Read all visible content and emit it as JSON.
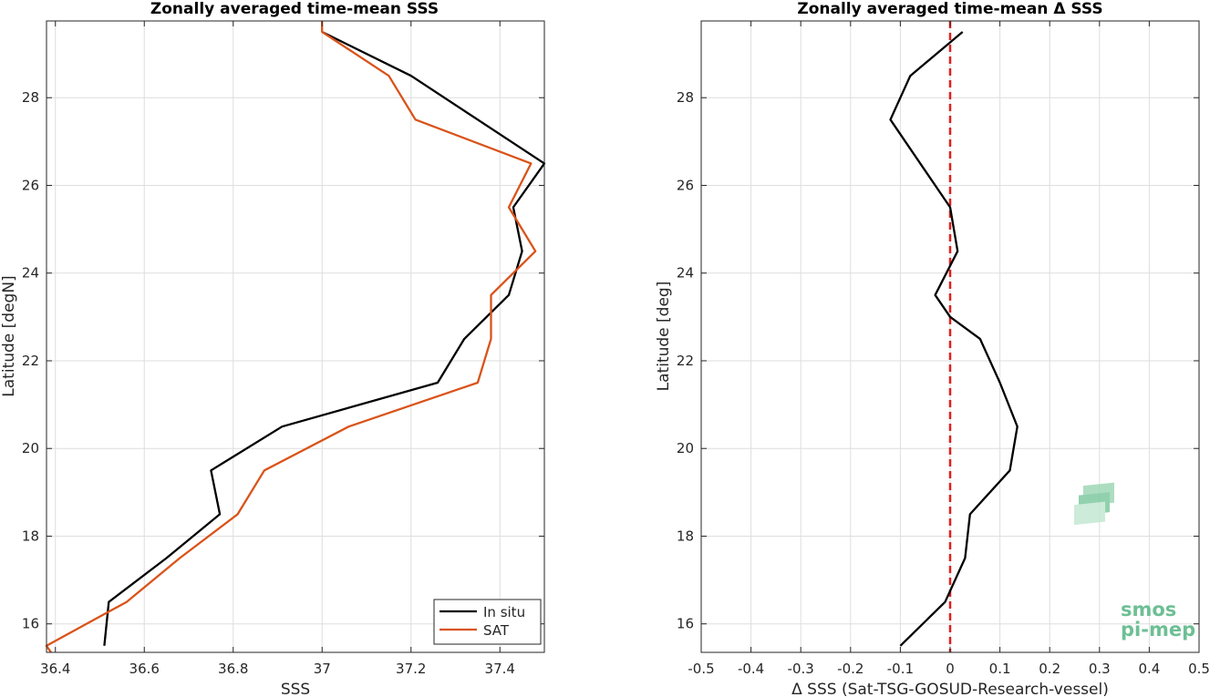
{
  "chart_data": [
    {
      "type": "line",
      "title": "Zonally averaged time-mean SSS",
      "xlabel": "SSS",
      "ylabel": "Latitude [degN]",
      "xlim": [
        36.38,
        37.5
      ],
      "ylim": [
        15.35,
        29.75
      ],
      "xticks": [
        36.4,
        36.6,
        36.8,
        37.0,
        37.2,
        37.4
      ],
      "xtick_labels": [
        "36.4",
        "36.6",
        "36.8",
        "37",
        "37.2",
        "37.4"
      ],
      "yticks": [
        16,
        18,
        20,
        22,
        24,
        26,
        28
      ],
      "ytick_labels": [
        "16",
        "18",
        "20",
        "22",
        "24",
        "26",
        "28"
      ],
      "grid": true,
      "legend_position": "bottom-right",
      "series": [
        {
          "name": "In situ",
          "color": "#000000",
          "points": [
            [
              36.51,
              15.5
            ],
            [
              36.52,
              16.5
            ],
            [
              36.65,
              17.5
            ],
            [
              36.77,
              18.5
            ],
            [
              36.75,
              19.5
            ],
            [
              36.91,
              20.5
            ],
            [
              37.26,
              21.5
            ],
            [
              37.32,
              22.5
            ],
            [
              37.42,
              23.5
            ],
            [
              37.45,
              24.5
            ],
            [
              37.43,
              25.5
            ],
            [
              37.5,
              26.5
            ],
            [
              37.35,
              27.5
            ],
            [
              37.2,
              28.5
            ],
            [
              37.0,
              29.5
            ]
          ]
        },
        {
          "name": "SAT",
          "color": "#d95319",
          "points": [
            [
              36.39,
              15.3
            ],
            [
              36.38,
              15.5
            ],
            [
              36.56,
              16.5
            ],
            [
              36.68,
              17.5
            ],
            [
              36.81,
              18.5
            ],
            [
              36.87,
              19.5
            ],
            [
              37.06,
              20.5
            ],
            [
              37.35,
              21.5
            ],
            [
              37.38,
              22.5
            ],
            [
              37.38,
              23.5
            ],
            [
              37.48,
              24.5
            ],
            [
              37.42,
              25.5
            ],
            [
              37.47,
              26.5
            ],
            [
              37.21,
              27.5
            ],
            [
              37.15,
              28.5
            ],
            [
              37.0,
              29.5
            ],
            [
              37.0,
              29.8
            ]
          ]
        }
      ]
    },
    {
      "type": "line",
      "title": "Zonally averaged time-mean Δ SSS",
      "xlabel": "Δ SSS (Sat-TSG-GOSUD-Research-vessel)",
      "ylabel": "Latitude [deg]",
      "xlim": [
        -0.5,
        0.5
      ],
      "ylim": [
        15.35,
        29.75
      ],
      "xticks": [
        -0.5,
        -0.4,
        -0.3,
        -0.2,
        -0.1,
        0,
        0.1,
        0.2,
        0.3,
        0.4,
        0.5
      ],
      "xtick_labels": [
        "-0.5",
        "-0.4",
        "-0.3",
        "-0.2",
        "-0.1",
        "0",
        "0.1",
        "0.2",
        "0.3",
        "0.4",
        "0.5"
      ],
      "yticks": [
        16,
        18,
        20,
        22,
        24,
        26,
        28
      ],
      "ytick_labels": [
        "16",
        "18",
        "20",
        "22",
        "24",
        "26",
        "28"
      ],
      "grid": true,
      "reference_line": {
        "x": 0,
        "color": "#e0201b",
        "style": "dashed"
      },
      "series": [
        {
          "color": "#000000",
          "points": [
            [
              -0.1,
              15.5
            ],
            [
              -0.01,
              16.5
            ],
            [
              0.03,
              17.5
            ],
            [
              0.04,
              18.5
            ],
            [
              0.12,
              19.5
            ],
            [
              0.135,
              20.5
            ],
            [
              0.1,
              21.5
            ],
            [
              0.06,
              22.5
            ],
            [
              0.0,
              23.0
            ],
            [
              -0.03,
              23.5
            ],
            [
              0.015,
              24.5
            ],
            [
              0.0,
              25.5
            ],
            [
              -0.12,
              27.5
            ],
            [
              -0.08,
              28.5
            ],
            [
              0.025,
              29.5
            ]
          ]
        }
      ]
    }
  ],
  "logo": {
    "line1": "smos",
    "line2": "pi-mep",
    "color": "#6dbf94"
  }
}
